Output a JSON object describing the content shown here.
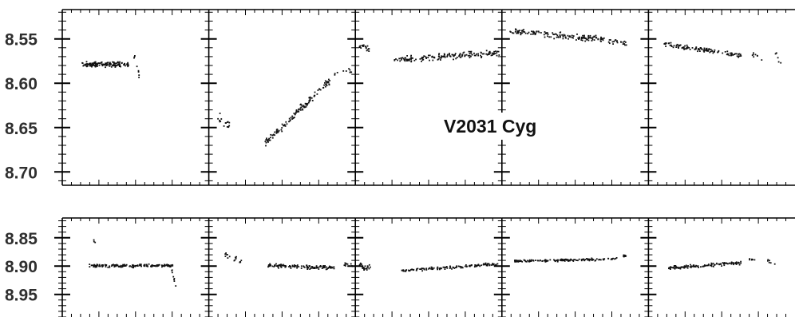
{
  "chart_data": {
    "type": "scatter",
    "annotation": "V2031 Cyg",
    "colors": {
      "points": "#111111",
      "frame": "#000000",
      "labels": "#2f2f2f",
      "background": "#ffffff"
    },
    "rows": [
      {
        "y_ticks": [
          "8.55",
          "8.60",
          "8.65",
          "8.70"
        ],
        "ylim": [
          8.517,
          8.715
        ],
        "y_inverted": true,
        "panels": [
          {
            "segments": [
              {
                "x": [
                  0.13,
                  0.45
                ],
                "y": [
                  8.578,
                  8.578
                ],
                "jitter": 0.004,
                "n": 150
              },
              {
                "x": [
                  0.48,
                  0.52
                ],
                "y": [
                  8.56,
                  8.59
                ],
                "jitter": 0.01,
                "n": 8
              }
            ]
          },
          {
            "segments": [
              {
                "x": [
                  0.05,
                  0.14
                ],
                "y": [
                  8.64,
                  8.645
                ],
                "jitter": 0.01,
                "n": 16
              },
              {
                "x": [
                  0.38,
                  0.83
                ],
                "y": [
                  8.667,
                  8.595
                ],
                "jitter": 0.006,
                "n": 130
              },
              {
                "x": [
                  0.85,
                  0.98
                ],
                "y": [
                  8.59,
                  8.585
                ],
                "jitter": 0.004,
                "n": 10
              }
            ]
          },
          {
            "segments": [
              {
                "x": [
                  0.02,
                  0.09
                ],
                "y": [
                  8.558,
                  8.56
                ],
                "jitter": 0.005,
                "n": 20
              },
              {
                "x": [
                  0.25,
                  0.98
                ],
                "y": [
                  8.573,
                  8.565
                ],
                "jitter": 0.005,
                "n": 160
              }
            ]
          },
          {
            "segments": [
              {
                "x": [
                  0.05,
                  0.7
                ],
                "y": [
                  8.54,
                  8.55
                ],
                "jitter": 0.005,
                "n": 150
              },
              {
                "x": [
                  0.72,
                  0.85
                ],
                "y": [
                  8.55,
                  8.555
                ],
                "jitter": 0.005,
                "n": 22
              }
            ]
          },
          {
            "segments": [
              {
                "x": [
                  0.1,
                  0.64
                ],
                "y": [
                  8.555,
                  8.568
                ],
                "jitter": 0.004,
                "n": 120
              },
              {
                "x": [
                  0.7,
                  0.78
                ],
                "y": [
                  8.565,
                  8.575
                ],
                "jitter": 0.006,
                "n": 8
              },
              {
                "x": [
                  0.86,
                  0.9
                ],
                "y": [
                  8.565,
                  8.58
                ],
                "jitter": 0.008,
                "n": 6
              }
            ]
          }
        ]
      },
      {
        "y_ticks": [
          "8.85",
          "8.90",
          "8.95"
        ],
        "ylim": [
          8.815,
          8.99
        ],
        "y_inverted": true,
        "panels": [
          {
            "segments": [
              {
                "x": [
                  0.18,
                  0.75
                ],
                "y": [
                  8.898,
                  8.898
                ],
                "jitter": 0.004,
                "n": 150
              },
              {
                "x": [
                  0.2,
                  0.25
                ],
                "y": [
                  8.85,
                  8.87
                ],
                "jitter": 0.004,
                "n": 3
              },
              {
                "x": [
                  0.74,
                  0.78
                ],
                "y": [
                  8.905,
                  8.945
                ],
                "jitter": 0.008,
                "n": 8
              }
            ]
          },
          {
            "segments": [
              {
                "x": [
                  0.1,
                  0.22
                ],
                "y": [
                  8.88,
                  8.89
                ],
                "jitter": 0.008,
                "n": 16
              },
              {
                "x": [
                  0.4,
                  0.85
                ],
                "y": [
                  8.898,
                  8.902
                ],
                "jitter": 0.005,
                "n": 130
              },
              {
                "x": [
                  0.9,
                  0.98
                ],
                "y": [
                  8.895,
                  8.898
                ],
                "jitter": 0.005,
                "n": 10
              }
            ]
          },
          {
            "segments": [
              {
                "x": [
                  0.02,
                  0.1
                ],
                "y": [
                  8.895,
                  8.905
                ],
                "jitter": 0.01,
                "n": 20
              },
              {
                "x": [
                  0.3,
                  0.98
                ],
                "y": [
                  8.907,
                  8.895
                ],
                "jitter": 0.004,
                "n": 130
              }
            ]
          },
          {
            "segments": [
              {
                "x": [
                  0.08,
                  0.7
                ],
                "y": [
                  8.89,
                  8.887
                ],
                "jitter": 0.003,
                "n": 150
              },
              {
                "x": [
                  0.72,
                  0.85
                ],
                "y": [
                  8.887,
                  8.88
                ],
                "jitter": 0.004,
                "n": 20
              }
            ]
          },
          {
            "segments": [
              {
                "x": [
                  0.13,
                  0.63
                ],
                "y": [
                  8.902,
                  8.893
                ],
                "jitter": 0.004,
                "n": 120
              },
              {
                "x": [
                  0.68,
                  0.72
                ],
                "y": [
                  8.885,
                  8.89
                ],
                "jitter": 0.005,
                "n": 6
              },
              {
                "x": [
                  0.8,
                  0.86
                ],
                "y": [
                  8.885,
                  8.9
                ],
                "jitter": 0.008,
                "n": 6
              }
            ]
          }
        ]
      }
    ]
  }
}
